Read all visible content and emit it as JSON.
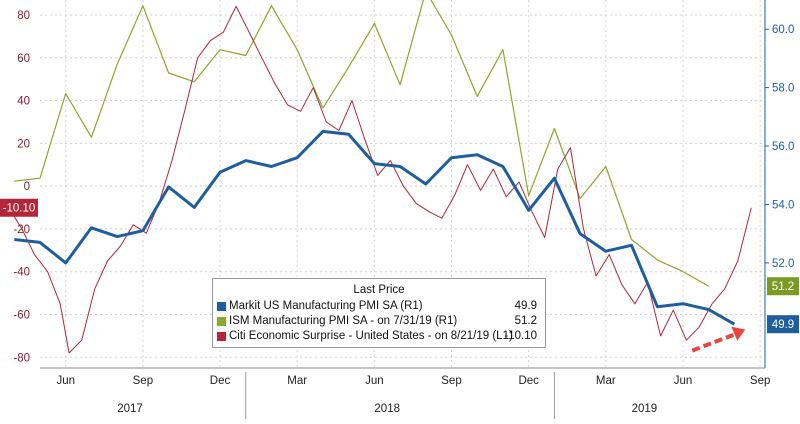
{
  "chart_data": {
    "type": "line",
    "x_axis": {
      "month_labels": [
        "Jun",
        "Sep",
        "Dec",
        "Mar",
        "Jun",
        "Sep",
        "Dec",
        "Mar",
        "Jun",
        "Sep"
      ],
      "year_labels": [
        "2017",
        "2018",
        "2019"
      ]
    },
    "left_axis": {
      "ticks": [
        "80",
        "60",
        "40",
        "20",
        "0",
        "-20",
        "-40",
        "-60",
        "-80"
      ],
      "ylim": [
        -85,
        87
      ]
    },
    "right_axis": {
      "ticks": [
        "60.0",
        "58.0",
        "56.0",
        "54.0",
        "52.0"
      ],
      "ylim": [
        48.4,
        61.0
      ]
    },
    "legend": {
      "title": "Last Price",
      "items": [
        {
          "label": "Markit US Manufacturing PMI SA  (R1)",
          "value": "49.9",
          "color": "#1f5e9e"
        },
        {
          "label": "ISM Manufacturing PMI SA  -  on 7/31/19  (R1)",
          "value": "51.2",
          "color": "#8aa82c"
        },
        {
          "label": "Citi Economic Surprise - United States  -  on 8/21/19  (L1)",
          "value": "-10.10",
          "color": "#b3263a"
        }
      ]
    },
    "badges": {
      "citi": "-10.10",
      "ism": "51.2",
      "markit": "49.9"
    },
    "series": [
      {
        "name": "Markit US Manufacturing PMI SA",
        "axis": "right",
        "color": "#1f5e9e",
        "x": [
          "2017-04-01",
          "2017-05-01",
          "2017-06-01",
          "2017-07-01",
          "2017-08-01",
          "2017-09-01",
          "2017-10-01",
          "2017-11-01",
          "2017-12-01",
          "2018-01-01",
          "2018-02-01",
          "2018-03-01",
          "2018-04-01",
          "2018-05-01",
          "2018-06-01",
          "2018-07-01",
          "2018-08-01",
          "2018-09-01",
          "2018-10-01",
          "2018-11-01",
          "2018-12-01",
          "2019-01-01",
          "2019-02-01",
          "2019-03-01",
          "2019-04-01",
          "2019-05-01",
          "2019-06-01",
          "2019-07-01",
          "2019-08-01"
        ],
        "y": [
          52.8,
          52.7,
          52.0,
          53.2,
          52.9,
          53.1,
          54.6,
          53.9,
          55.1,
          55.5,
          55.3,
          55.6,
          56.5,
          56.4,
          55.4,
          55.3,
          54.7,
          55.6,
          55.7,
          55.3,
          53.8,
          54.9,
          53.0,
          52.4,
          52.6,
          50.5,
          50.6,
          50.4,
          49.9
        ]
      },
      {
        "name": "ISM Manufacturing PMI SA",
        "axis": "right",
        "color": "#8aa82c",
        "x": [
          "2017-04-01",
          "2017-05-01",
          "2017-06-01",
          "2017-07-01",
          "2017-08-01",
          "2017-09-01",
          "2017-10-01",
          "2017-11-01",
          "2017-12-01",
          "2018-01-01",
          "2018-02-01",
          "2018-03-01",
          "2018-04-01",
          "2018-05-01",
          "2018-06-01",
          "2018-07-01",
          "2018-08-01",
          "2018-09-01",
          "2018-10-01",
          "2018-11-01",
          "2018-12-01",
          "2019-01-01",
          "2019-02-01",
          "2019-03-01",
          "2019-04-01",
          "2019-05-01",
          "2019-06-01",
          "2019-07-01"
        ],
        "y": [
          54.8,
          54.9,
          57.8,
          56.3,
          58.8,
          60.8,
          58.5,
          58.2,
          59.3,
          59.1,
          60.8,
          59.3,
          57.3,
          58.7,
          60.2,
          58.1,
          61.3,
          59.8,
          57.7,
          59.3,
          54.3,
          56.6,
          54.2,
          55.3,
          52.8,
          52.1,
          51.7,
          51.2
        ]
      },
      {
        "name": "Citi Economic Surprise - United States",
        "axis": "left",
        "color": "#b3263a",
        "x": [
          "2017-03-28",
          "2017-04-10",
          "2017-04-25",
          "2017-05-10",
          "2017-05-25",
          "2017-06-05",
          "2017-06-20",
          "2017-07-05",
          "2017-07-20",
          "2017-08-05",
          "2017-08-20",
          "2017-09-05",
          "2017-09-20",
          "2017-10-05",
          "2017-10-20",
          "2017-11-05",
          "2017-11-20",
          "2017-12-05",
          "2017-12-20",
          "2018-01-05",
          "2018-01-20",
          "2018-02-05",
          "2018-02-20",
          "2018-03-05",
          "2018-03-20",
          "2018-04-05",
          "2018-04-20",
          "2018-05-05",
          "2018-05-20",
          "2018-06-05",
          "2018-06-20",
          "2018-07-05",
          "2018-07-20",
          "2018-08-05",
          "2018-08-20",
          "2018-09-05",
          "2018-09-20",
          "2018-10-05",
          "2018-10-20",
          "2018-11-05",
          "2018-11-20",
          "2018-12-05",
          "2018-12-20",
          "2019-01-05",
          "2019-01-20",
          "2019-02-05",
          "2019-02-20",
          "2019-03-05",
          "2019-03-20",
          "2019-04-05",
          "2019-04-20",
          "2019-05-05",
          "2019-05-20",
          "2019-06-05",
          "2019-06-20",
          "2019-07-05",
          "2019-07-20",
          "2019-08-05",
          "2019-08-21"
        ],
        "y": [
          -12,
          -20,
          -32,
          -40,
          -55,
          -78,
          -72,
          -48,
          -35,
          -28,
          -18,
          -22,
          -8,
          12,
          35,
          60,
          68,
          72,
          84,
          72,
          60,
          48,
          38,
          35,
          46,
          30,
          26,
          40,
          22,
          5,
          12,
          0,
          -8,
          -12,
          -15,
          -4,
          10,
          -2,
          8,
          -5,
          2,
          -12,
          -24,
          8,
          18,
          -20,
          -42,
          -32,
          -46,
          -55,
          -45,
          -70,
          -58,
          -72,
          -66,
          -55,
          -48,
          -35,
          -10.1
        ]
      }
    ]
  }
}
